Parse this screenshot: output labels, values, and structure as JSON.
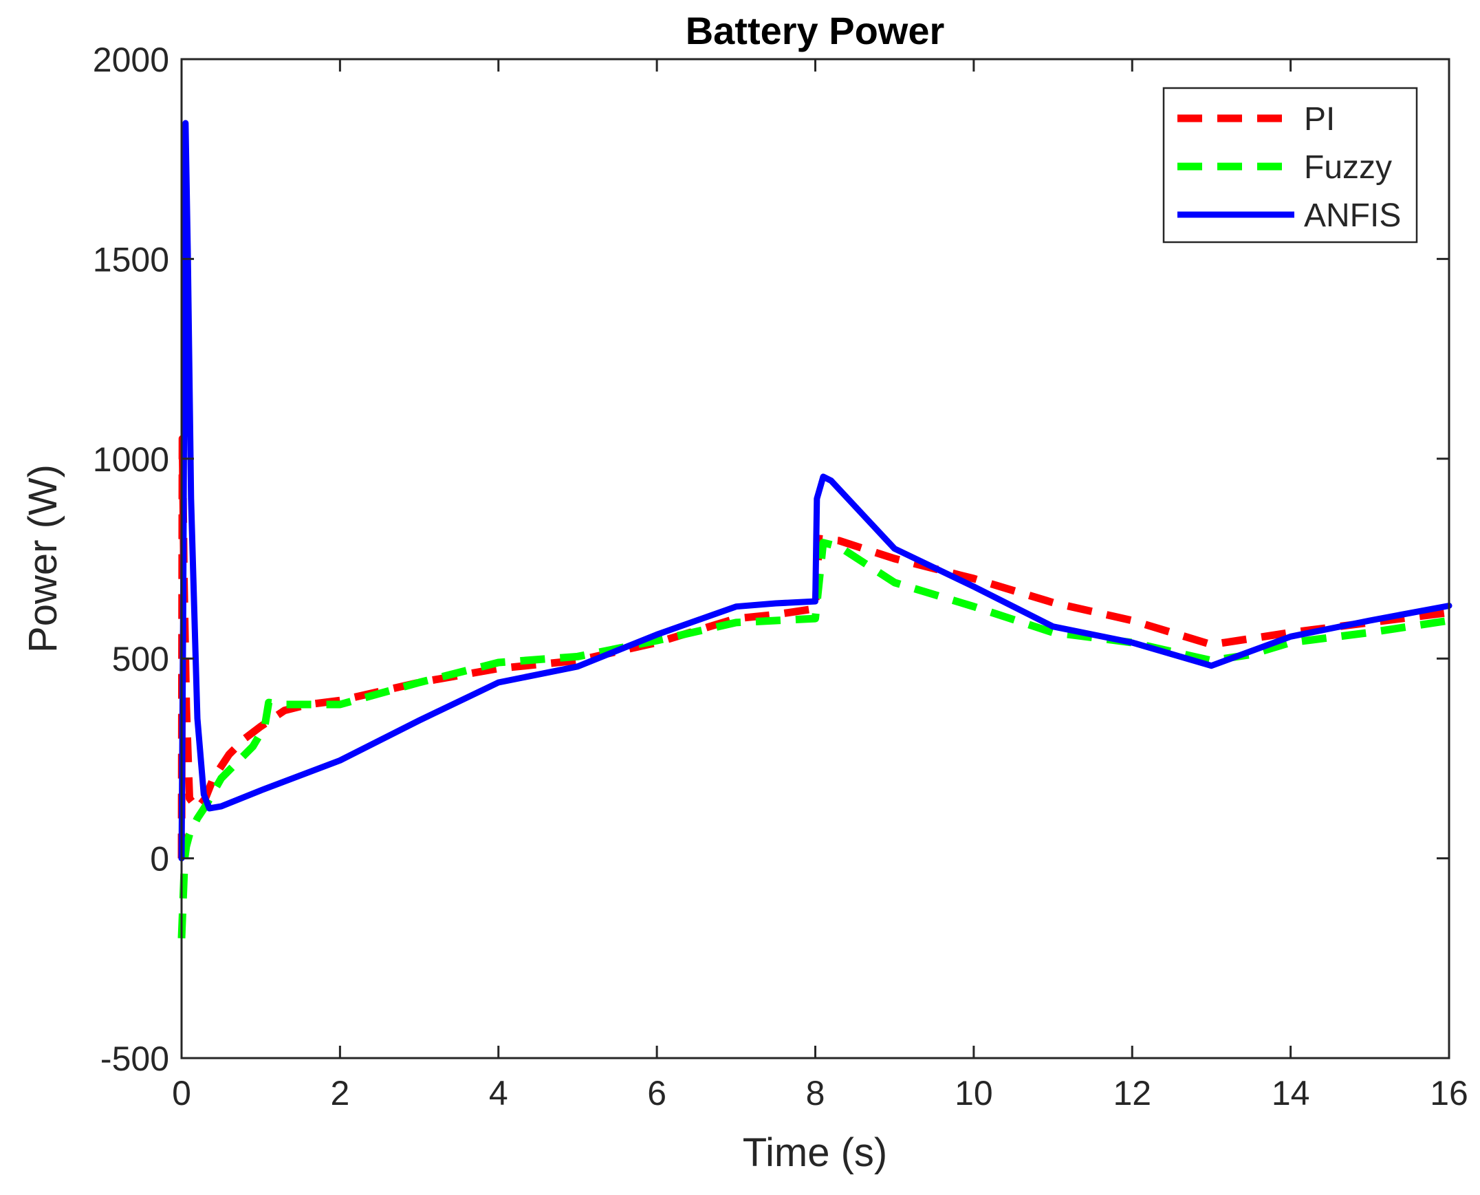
{
  "chart_data": {
    "type": "line",
    "title": "Battery Power",
    "xlabel": "Time (s)",
    "ylabel": "Power (W)",
    "xlim": [
      0,
      16
    ],
    "ylim": [
      -500,
      2000
    ],
    "xticks": [
      0,
      2,
      4,
      6,
      8,
      10,
      12,
      14,
      16
    ],
    "yticks": [
      -500,
      0,
      500,
      1000,
      1500,
      2000
    ],
    "grid": false,
    "legend_position": "top-right",
    "series": [
      {
        "name": "PI",
        "color": "#ff0000",
        "style": "dashed",
        "points": [
          [
            0,
            0
          ],
          [
            0.01,
            1050
          ],
          [
            0.03,
            700
          ],
          [
            0.06,
            380
          ],
          [
            0.1,
            150
          ],
          [
            0.2,
            125
          ],
          [
            0.3,
            150
          ],
          [
            0.4,
            200
          ],
          [
            0.6,
            260
          ],
          [
            0.8,
            300
          ],
          [
            1.0,
            330
          ],
          [
            1.3,
            370
          ],
          [
            1.6,
            385
          ],
          [
            2,
            395
          ],
          [
            3,
            440
          ],
          [
            4,
            475
          ],
          [
            5,
            495
          ],
          [
            6,
            540
          ],
          [
            7,
            600
          ],
          [
            7.5,
            610
          ],
          [
            8,
            625
          ],
          [
            8.05,
            800
          ],
          [
            8.3,
            795
          ],
          [
            9,
            750
          ],
          [
            10,
            700
          ],
          [
            11,
            640
          ],
          [
            12,
            595
          ],
          [
            13,
            535
          ],
          [
            13.5,
            550
          ],
          [
            14,
            565
          ],
          [
            15,
            590
          ],
          [
            16,
            615
          ]
        ]
      },
      {
        "name": "Fuzzy",
        "color": "#00ff00",
        "style": "dashed",
        "points": [
          [
            0,
            -200
          ],
          [
            0.02,
            -100
          ],
          [
            0.04,
            0
          ],
          [
            0.06,
            30
          ],
          [
            0.1,
            60
          ],
          [
            0.2,
            100
          ],
          [
            0.3,
            130
          ],
          [
            0.5,
            200
          ],
          [
            0.7,
            240
          ],
          [
            0.9,
            280
          ],
          [
            1.05,
            330
          ],
          [
            1.1,
            390
          ],
          [
            1.3,
            385
          ],
          [
            2,
            385
          ],
          [
            3,
            440
          ],
          [
            4,
            490
          ],
          [
            5,
            505
          ],
          [
            6,
            545
          ],
          [
            7,
            590
          ],
          [
            8,
            600
          ],
          [
            8.1,
            790
          ],
          [
            8.3,
            780
          ],
          [
            9,
            690
          ],
          [
            10,
            630
          ],
          [
            11,
            565
          ],
          [
            12,
            540
          ],
          [
            13,
            495
          ],
          [
            13.5,
            510
          ],
          [
            14,
            540
          ],
          [
            15,
            565
          ],
          [
            16,
            595
          ]
        ]
      },
      {
        "name": "ANFIS",
        "color": "#0000ff",
        "style": "solid",
        "points": [
          [
            0,
            0
          ],
          [
            0.02,
            600
          ],
          [
            0.05,
            1840
          ],
          [
            0.08,
            1500
          ],
          [
            0.12,
            900
          ],
          [
            0.2,
            350
          ],
          [
            0.28,
            160
          ],
          [
            0.35,
            125
          ],
          [
            0.5,
            130
          ],
          [
            1,
            170
          ],
          [
            2,
            245
          ],
          [
            3,
            345
          ],
          [
            4,
            440
          ],
          [
            5,
            480
          ],
          [
            6,
            560
          ],
          [
            7,
            630
          ],
          [
            7.5,
            638
          ],
          [
            8,
            643
          ],
          [
            8.02,
            900
          ],
          [
            8.1,
            955
          ],
          [
            8.2,
            945
          ],
          [
            9,
            775
          ],
          [
            10,
            680
          ],
          [
            11,
            580
          ],
          [
            12,
            540
          ],
          [
            13,
            482
          ],
          [
            14,
            555
          ],
          [
            15,
            595
          ],
          [
            16,
            632
          ]
        ]
      }
    ]
  }
}
